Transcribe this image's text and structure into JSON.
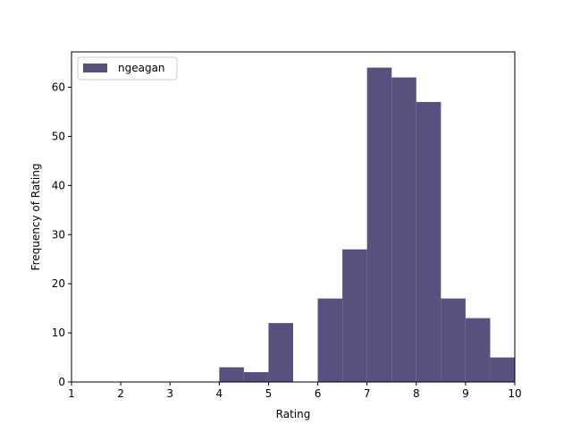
{
  "chart_data": {
    "type": "bar",
    "title": "",
    "xlabel": "Rating",
    "ylabel": "Frequency of Rating",
    "xlim": [
      1,
      10
    ],
    "ylim": [
      0,
      67.2
    ],
    "x_ticks": [
      1,
      2,
      3,
      4,
      5,
      6,
      7,
      8,
      9,
      10
    ],
    "y_ticks": [
      0,
      10,
      20,
      30,
      40,
      50,
      60
    ],
    "grid": false,
    "legend_position": "top-left",
    "series": [
      {
        "name": "ngeagan",
        "color": "#58517f",
        "bins": [
          {
            "x0": 4.0,
            "x1": 4.5,
            "value": 3
          },
          {
            "x0": 4.5,
            "x1": 5.0,
            "value": 2
          },
          {
            "x0": 5.0,
            "x1": 5.5,
            "value": 12
          },
          {
            "x0": 5.5,
            "x1": 6.0,
            "value": 0
          },
          {
            "x0": 6.0,
            "x1": 6.5,
            "value": 17
          },
          {
            "x0": 6.5,
            "x1": 7.0,
            "value": 27
          },
          {
            "x0": 7.0,
            "x1": 7.5,
            "value": 64
          },
          {
            "x0": 7.5,
            "x1": 8.0,
            "value": 62
          },
          {
            "x0": 8.0,
            "x1": 8.5,
            "value": 57
          },
          {
            "x0": 8.5,
            "x1": 9.0,
            "value": 17
          },
          {
            "x0": 9.0,
            "x1": 9.5,
            "value": 13
          },
          {
            "x0": 9.5,
            "x1": 10.0,
            "value": 5
          }
        ]
      }
    ]
  }
}
